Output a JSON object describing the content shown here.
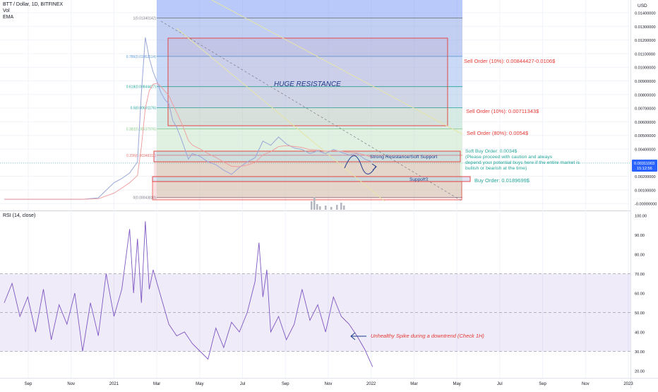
{
  "header": {
    "symbol": "BTT / Dollar, 1D, BITFINEX",
    "vol": "Vol",
    "ema": "EMA"
  },
  "axis": {
    "currency": "USD"
  },
  "colors": {
    "price_line": "#9aa7d8",
    "red": "#e53935",
    "rsi": "#7e57c2",
    "green": "#26a69a"
  },
  "chart_data": [
    {
      "type": "line",
      "title": "BTT / Dollar, 1D, BITFINEX",
      "ylim": [
        -0.0001,
        0.0145
      ],
      "x_ticks": [
        "Sep",
        "Nov",
        "2021",
        "Mar",
        "May",
        "Jul",
        "Sep",
        "Nov",
        "2022",
        "Mar",
        "May",
        "Jul",
        "Sep",
        "Nov",
        "2023"
      ],
      "y_ticks": [
        "0.01400000",
        "0.01300000",
        "0.01200000",
        "0.01100000",
        "0.01000000",
        "0.00900000",
        "0.00800000",
        "0.00700000",
        "0.00600000",
        "0.00500000",
        "0.00400000",
        "0.00300000",
        "0.00200000",
        "0.00100000",
        "-0.00000000"
      ],
      "last_price": {
        "value": "0.00311003",
        "time": "15:12:56"
      },
      "series": [
        {
          "x": [
            0,
            4,
            8,
            12,
            16,
            20,
            24,
            28,
            30,
            32,
            34,
            35,
            36,
            37,
            38,
            39,
            40,
            41,
            42,
            43,
            44,
            45,
            46,
            47,
            48,
            50,
            52,
            54,
            56,
            58,
            60,
            62,
            64,
            66,
            68,
            70,
            72,
            74,
            76,
            78,
            80,
            82,
            84,
            86,
            88,
            90,
            92,
            94
          ],
          "values": [
            0.0003,
            0.0003,
            0.0003,
            0.0003,
            0.0003,
            0.0003,
            0.0004,
            0.0015,
            0.0018,
            0.0022,
            0.003,
            0.008,
            0.012,
            0.0105,
            0.0095,
            0.0088,
            0.008,
            0.0075,
            0.0072,
            0.006,
            0.0055,
            0.0048,
            0.004,
            0.0032,
            0.0036,
            0.0034,
            0.003,
            0.0028,
            0.0024,
            0.0021,
            0.0026,
            0.003,
            0.0033,
            0.0045,
            0.0042,
            0.0048,
            0.0043,
            0.004,
            0.0039,
            0.0036,
            0.0038,
            0.0036,
            0.0039,
            0.0037,
            0.0035,
            0.0036,
            0.0032,
            0.003
          ]
        }
      ],
      "fib_levels": [
        {
          "label": "1(0.01340142)",
          "value": 0.0134
        },
        {
          "label": "0.786(0.01062614)",
          "value": 0.01063
        },
        {
          "label": "0.618(0.00844427)",
          "value": 0.00844
        },
        {
          "label": "0.5(0.00691176)",
          "value": 0.00691
        },
        {
          "label": "0.382(0.00537976)",
          "value": 0.00538
        },
        {
          "label": "0.236(0.00348311)",
          "value": 0.00348
        },
        {
          "label": "0(0.00043810)",
          "value": 0.00044
        }
      ],
      "annotations": [
        {
          "id": "huge",
          "text": "HUGE RESISTANCE"
        },
        {
          "id": "sell1",
          "text": "Sell Order (10%): 0.00844427-0.0106$"
        },
        {
          "id": "sell2",
          "text": "Sell Order (10%): 0.00711343$"
        },
        {
          "id": "sell3",
          "text": "Sell Order (80%): 0.0054$"
        },
        {
          "id": "softbuy",
          "lines": [
            "Soft Buy Order: 0.0034$",
            "(Please proceed with caution and always",
            "depend your potential buys here if the entire market is",
            "bullish or bearish at the time)"
          ]
        },
        {
          "id": "strong",
          "text": "Strong Resistance/Soft Support"
        },
        {
          "id": "support",
          "text": "Support?"
        },
        {
          "id": "buy",
          "text": "Buy Order: 0.0189699$"
        }
      ]
    },
    {
      "type": "line",
      "title": "RSI (14, close)",
      "ylim": [
        18,
        102
      ],
      "y_ticks": [
        "100.00",
        "90.00",
        "80.00",
        "70.00",
        "60.00",
        "50.00",
        "40.00",
        "30.00",
        "20.00"
      ],
      "band": [
        30,
        70
      ],
      "series": [
        {
          "name": "RSI (14, close)",
          "x": [
            0,
            2,
            4,
            6,
            8,
            10,
            12,
            14,
            16,
            18,
            20,
            22,
            24,
            26,
            28,
            30,
            32,
            33,
            34,
            35,
            36,
            37,
            38,
            40,
            42,
            44,
            46,
            48,
            50,
            52,
            54,
            56,
            58,
            60,
            62,
            64,
            65,
            66,
            67,
            68,
            70,
            72,
            74,
            76,
            78,
            80,
            82,
            84,
            86,
            88,
            90,
            92,
            94
          ],
          "values": [
            55,
            65,
            48,
            58,
            40,
            62,
            36,
            54,
            44,
            60,
            30,
            55,
            38,
            70,
            48,
            62,
            93,
            60,
            88,
            55,
            97,
            62,
            72,
            58,
            44,
            38,
            40,
            34,
            30,
            26,
            42,
            32,
            45,
            40,
            50,
            66,
            86,
            58,
            72,
            40,
            48,
            36,
            44,
            62,
            46,
            54,
            40,
            58,
            48,
            44,
            38,
            31,
            22
          ]
        }
      ],
      "annotations": [
        {
          "id": "rsi_note",
          "text": "Unhealthy Spike during a downtrend (Check 1H)"
        }
      ]
    }
  ]
}
